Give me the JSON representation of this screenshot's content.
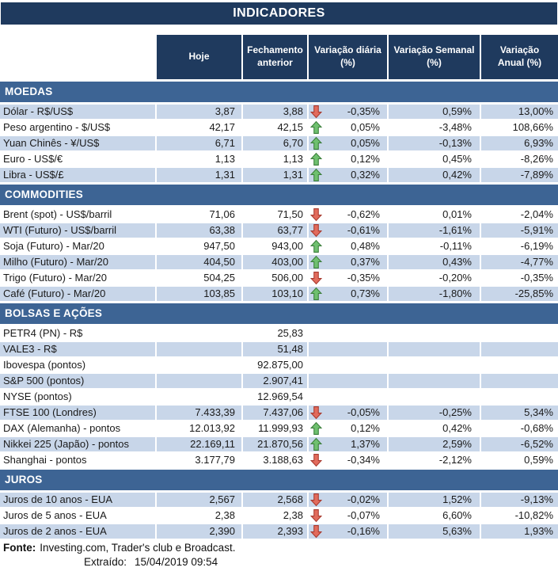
{
  "title": "INDICADORES",
  "columns": [
    "Hoje",
    "Fechamento\nanterior",
    "Variação diária\n(%)",
    "Variação Semanal\n(%)",
    "Variação\nAnual (%)"
  ],
  "sections": [
    {
      "name": "MOEDAS",
      "rows": [
        {
          "label": "Dólar - R$/US$",
          "hoje": "3,87",
          "fechamento": "3,88",
          "arrow": "down",
          "var_diaria": "-0,35%",
          "var_semanal": "0,59%",
          "var_anual": "13,00%"
        },
        {
          "label": "Peso argentino - $/US$",
          "hoje": "42,17",
          "fechamento": "42,15",
          "arrow": "up",
          "var_diaria": "0,05%",
          "var_semanal": "-3,48%",
          "var_anual": "108,66%"
        },
        {
          "label": "Yuan Chinês - ¥/US$",
          "hoje": "6,71",
          "fechamento": "6,70",
          "arrow": "up",
          "var_diaria": "0,05%",
          "var_semanal": "-0,13%",
          "var_anual": "6,93%"
        },
        {
          "label": "Euro - US$/€",
          "hoje": "1,13",
          "fechamento": "1,13",
          "arrow": "up",
          "var_diaria": "0,12%",
          "var_semanal": "0,45%",
          "var_anual": "-8,26%"
        },
        {
          "label": "Libra - US$/£",
          "hoje": "1,31",
          "fechamento": "1,31",
          "arrow": "up",
          "var_diaria": "0,32%",
          "var_semanal": "0,42%",
          "var_anual": "-7,89%"
        }
      ]
    },
    {
      "name": "COMMODITIES",
      "rows": [
        {
          "label": "Brent (spot) - US$/barril",
          "hoje": "71,06",
          "fechamento": "71,50",
          "arrow": "down",
          "var_diaria": "-0,62%",
          "var_semanal": "0,01%",
          "var_anual": "-2,04%"
        },
        {
          "label": "WTI (Futuro) - US$/barril",
          "hoje": "63,38",
          "fechamento": "63,77",
          "arrow": "down",
          "var_diaria": "-0,61%",
          "var_semanal": "-1,61%",
          "var_anual": "-5,91%"
        },
        {
          "label": "Soja (Futuro) - Mar/20",
          "hoje": "947,50",
          "fechamento": "943,00",
          "arrow": "up",
          "var_diaria": "0,48%",
          "var_semanal": "-0,11%",
          "var_anual": "-6,19%"
        },
        {
          "label": "Milho (Futuro) - Mar/20",
          "hoje": "404,50",
          "fechamento": "403,00",
          "arrow": "up",
          "var_diaria": "0,37%",
          "var_semanal": "0,43%",
          "var_anual": "-4,77%"
        },
        {
          "label": "Trigo (Futuro) - Mar/20",
          "hoje": "504,25",
          "fechamento": "506,00",
          "arrow": "down",
          "var_diaria": "-0,35%",
          "var_semanal": "-0,20%",
          "var_anual": "-0,35%"
        },
        {
          "label": "Café (Futuro) - Mar/20",
          "hoje": "103,85",
          "fechamento": "103,10",
          "arrow": "up",
          "var_diaria": "0,73%",
          "var_semanal": "-1,80%",
          "var_anual": "-25,85%"
        }
      ]
    },
    {
      "name": "BOLSAS E AÇÕES",
      "rows": [
        {
          "label": "PETR4 (PN) - R$",
          "hoje": "",
          "fechamento": "25,83",
          "arrow": null,
          "var_diaria": "",
          "var_semanal": "",
          "var_anual": ""
        },
        {
          "label": "VALE3 - R$",
          "hoje": "",
          "fechamento": "51,48",
          "arrow": null,
          "var_diaria": "",
          "var_semanal": "",
          "var_anual": ""
        },
        {
          "label": "Ibovespa (pontos)",
          "hoje": "",
          "fechamento": "92.875,00",
          "arrow": null,
          "var_diaria": "",
          "var_semanal": "",
          "var_anual": ""
        },
        {
          "label": "S&P 500 (pontos)",
          "hoje": "",
          "fechamento": "2.907,41",
          "arrow": null,
          "var_diaria": "",
          "var_semanal": "",
          "var_anual": ""
        },
        {
          "label": "NYSE (pontos)",
          "hoje": "",
          "fechamento": "12.969,54",
          "arrow": null,
          "var_diaria": "",
          "var_semanal": "",
          "var_anual": ""
        },
        {
          "label": "FTSE 100 (Londres)",
          "hoje": "7.433,39",
          "fechamento": "7.437,06",
          "arrow": "down",
          "var_diaria": "-0,05%",
          "var_semanal": "-0,25%",
          "var_anual": "5,34%"
        },
        {
          "label": "DAX (Alemanha) - pontos",
          "hoje": "12.013,92",
          "fechamento": "11.999,93",
          "arrow": "up",
          "var_diaria": "0,12%",
          "var_semanal": "0,42%",
          "var_anual": "-0,68%"
        },
        {
          "label": "Nikkei 225 (Japão) - pontos",
          "hoje": "22.169,11",
          "fechamento": "21.870,56",
          "arrow": "up",
          "var_diaria": "1,37%",
          "var_semanal": "2,59%",
          "var_anual": "-6,52%"
        },
        {
          "label": "Shanghai - pontos",
          "hoje": "3.177,79",
          "fechamento": "3.188,63",
          "arrow": "down",
          "var_diaria": "-0,34%",
          "var_semanal": "-2,12%",
          "var_anual": "0,59%"
        }
      ]
    },
    {
      "name": "JUROS",
      "rows": [
        {
          "label": "Juros de 10 anos - EUA",
          "hoje": "2,567",
          "fechamento": "2,568",
          "arrow": "down",
          "var_diaria": "-0,02%",
          "var_semanal": "1,52%",
          "var_anual": "-9,13%"
        },
        {
          "label": "Juros de 5 anos - EUA",
          "hoje": "2,38",
          "fechamento": "2,38",
          "arrow": "down",
          "var_diaria": "-0,07%",
          "var_semanal": "6,60%",
          "var_anual": "-10,82%"
        },
        {
          "label": "Juros de 2 anos - EUA",
          "hoje": "2,390",
          "fechamento": "2,393",
          "arrow": "down",
          "var_diaria": "-0,16%",
          "var_semanal": "5,63%",
          "var_anual": "1,93%"
        }
      ]
    }
  ],
  "footer": {
    "fonte_label": "Fonte:",
    "fonte_text": "Investing.com, Trader's club e Broadcast.",
    "extraido_label": "Extraído:",
    "extraido_value": "15/04/2019 09:54"
  },
  "colors": {
    "header_navy": "#1F3A5E",
    "section_blue": "#3D6494",
    "stripe_blue": "#C8D6E9",
    "arrow_up_fill": "#6FC06F",
    "arrow_up_border": "#3A7D3A",
    "arrow_down_fill": "#E26B5C",
    "arrow_down_border": "#A83A2F"
  }
}
